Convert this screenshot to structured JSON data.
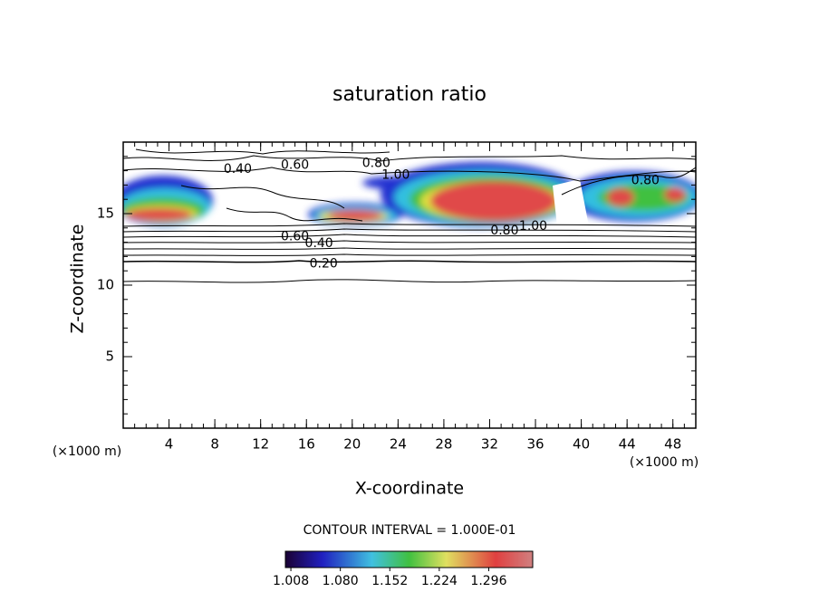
{
  "chart_data": {
    "type": "contour",
    "title": "saturation ratio",
    "x_label": "X-coordinate",
    "y_label": "Z-coordinate",
    "x_unit": "(×1000 m)",
    "y_unit": "(×1000 m)",
    "xlim": [
      0,
      50
    ],
    "ylim": [
      0,
      20
    ],
    "xticks": [
      4,
      8,
      12,
      16,
      20,
      24,
      28,
      32,
      36,
      40,
      44,
      48
    ],
    "yticks": [
      5,
      10,
      15
    ],
    "contour_labels": [
      {
        "label": "0.40",
        "x": 10.0,
        "y": 18.1
      },
      {
        "label": "0.60",
        "x": 15.0,
        "y": 18.4
      },
      {
        "label": "0.80",
        "x": 22.1,
        "y": 18.5
      },
      {
        "label": "1.00",
        "x": 23.8,
        "y": 17.7
      },
      {
        "label": "0.80",
        "x": 45.6,
        "y": 17.3
      },
      {
        "label": "0.60",
        "x": 15.0,
        "y": 13.4
      },
      {
        "label": "0.40",
        "x": 17.1,
        "y": 12.9
      },
      {
        "label": "0.20",
        "x": 17.5,
        "y": 11.5
      },
      {
        "label": "0.80",
        "x": 33.3,
        "y": 13.8
      },
      {
        "label": "1.00",
        "x": 35.8,
        "y": 14.1
      }
    ],
    "contour_interval": "CONTOUR INTERVAL = 1.000E-01",
    "colorbar_lim": [
      1.0,
      1.36
    ],
    "colorbar_ticks": [
      {
        "value": 1.008,
        "label": "1.008"
      },
      {
        "value": 1.08,
        "label": "1.080"
      },
      {
        "value": 1.152,
        "label": "1.152"
      },
      {
        "value": 1.224,
        "label": "1.224"
      },
      {
        "value": 1.296,
        "label": "1.296"
      }
    ]
  }
}
